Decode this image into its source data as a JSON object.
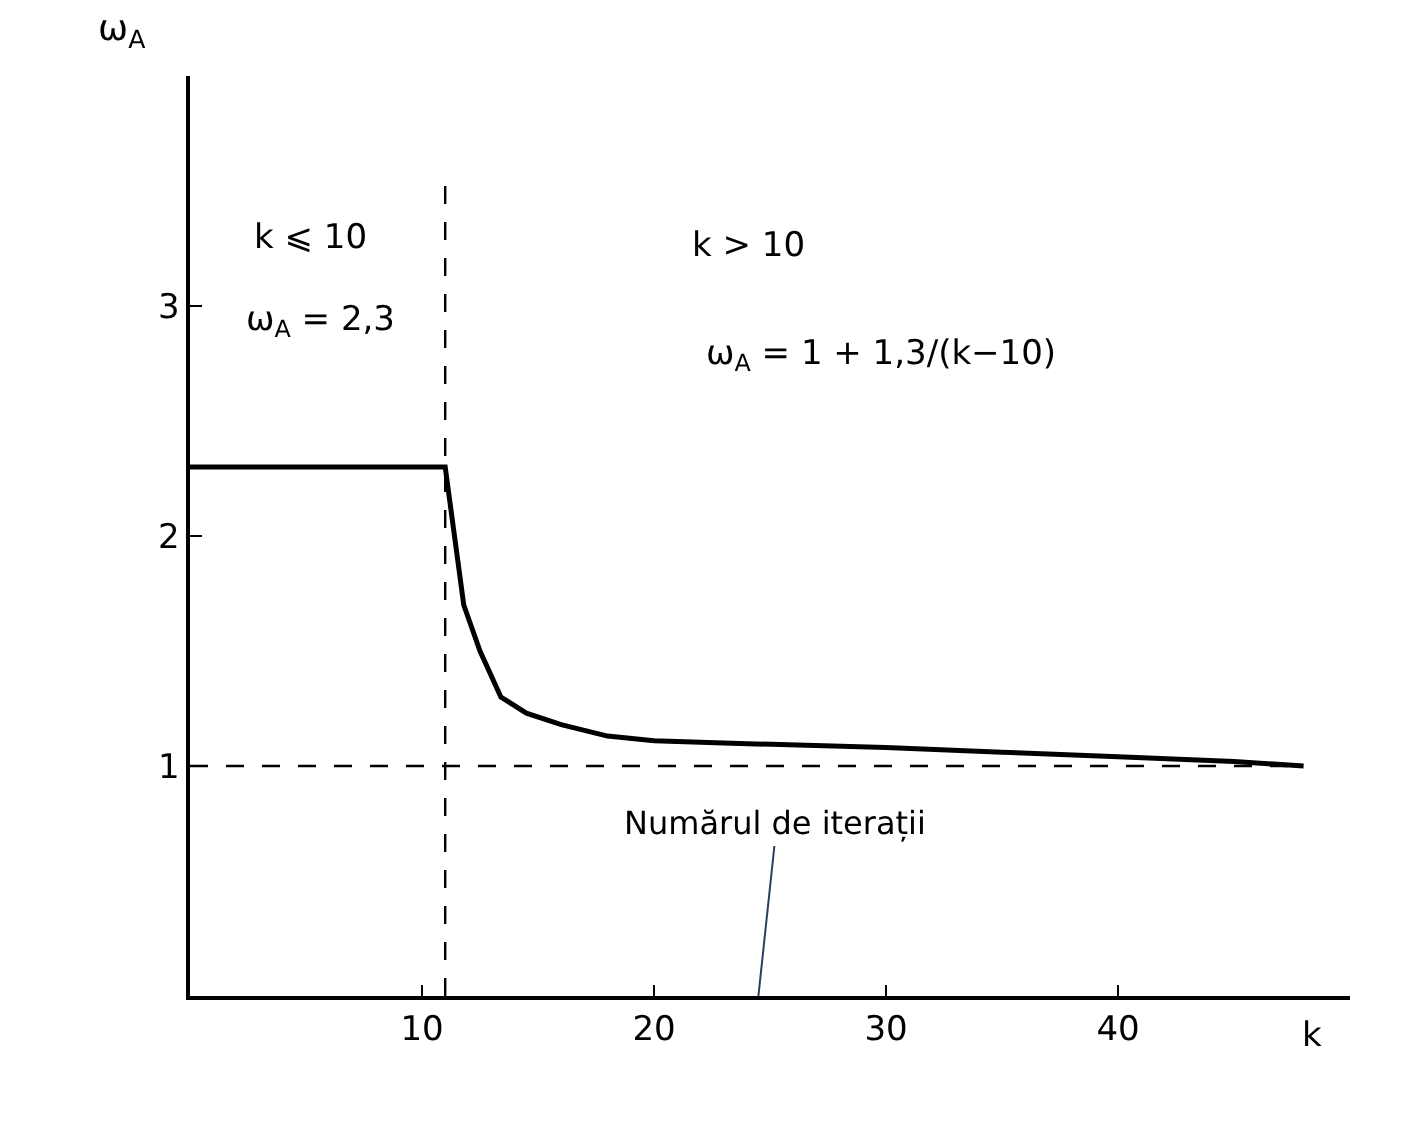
{
  "chart_data": {
    "type": "line",
    "xlabel": "k",
    "ylabel": "ω$_{A}$",
    "x": [
      0,
      11,
      11.2,
      11.8,
      12.5,
      13.4,
      14.5,
      16,
      18,
      20,
      23,
      30,
      35,
      40,
      45,
      48
    ],
    "series": [
      {
        "color": "#000000",
        "values": [
          2.3,
          2.3,
          2.15,
          1.7,
          1.5,
          1.3,
          1.23,
          1.18,
          1.13,
          1.11,
          1.1,
          1.08,
          1.06,
          1.04,
          1.02,
          1.0
        ]
      }
    ],
    "xlim": [
      0,
      50
    ],
    "ylim": [
      0,
      4
    ],
    "xticks": [
      10,
      20,
      30,
      40
    ],
    "yticks": [
      1,
      2,
      3
    ],
    "ref_lines": [
      {
        "axis": "x",
        "value": 11,
        "label": null,
        "color": "#000000",
        "line_style": "dashed"
      },
      {
        "axis": "y",
        "value": 1,
        "label": null,
        "color": "#000000",
        "line_style": "dashed"
      }
    ],
    "annotations": [
      "k ⩽ 10",
      "ω$_{A}$ = 2,3",
      "k > 10",
      "ω$_{A}$ = 1 + 1,3/(k−10)",
      "Numărul de iterații"
    ],
    "marker": "none",
    "line_style": "solid"
  }
}
